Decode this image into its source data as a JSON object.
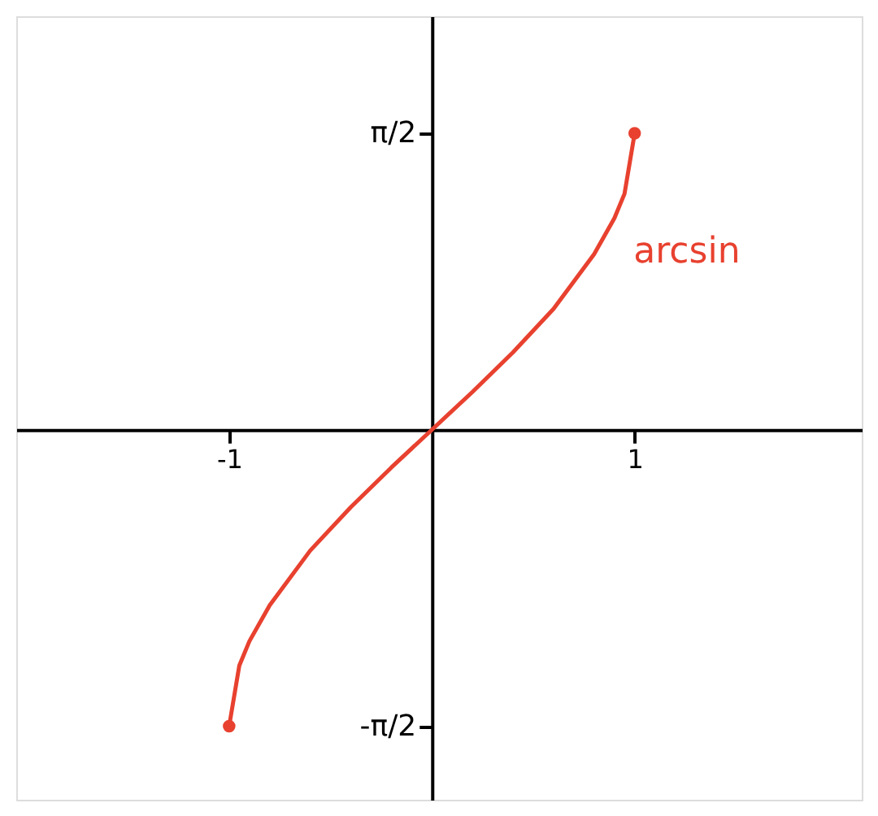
{
  "chart_data": {
    "type": "line",
    "x": [
      -1,
      -0.95,
      -0.9,
      -0.8,
      -0.6,
      -0.4,
      -0.2,
      0,
      0.2,
      0.4,
      0.6,
      0.8,
      0.9,
      0.95,
      1
    ],
    "series": [
      {
        "color": "#e8412f",
        "values": [
          -1.57,
          -1.25,
          -1.12,
          -0.93,
          -0.64,
          -0.41,
          -0.2,
          0,
          0.2,
          0.41,
          0.64,
          0.93,
          1.12,
          1.25,
          1.57
        ]
      },
      {
        "type": "scatter",
        "marker": "circle",
        "color": "#e8412f",
        "x": [
          -1,
          1
        ],
        "values": [
          -1.57,
          1.57
        ]
      }
    ],
    "xlim": [
      -2.05,
      2.12
    ],
    "ylim": [
      -1.96,
      2.19
    ],
    "xticks": [
      {
        "value": -1,
        "label": "-1"
      },
      {
        "value": 1,
        "label": "1"
      }
    ],
    "yticks": [
      {
        "value": 1.5708,
        "label": "π/2"
      },
      {
        "value": -1.5708,
        "label": "-π/2"
      }
    ],
    "annotations": [
      "arcsin"
    ],
    "line_style": "solid"
  }
}
